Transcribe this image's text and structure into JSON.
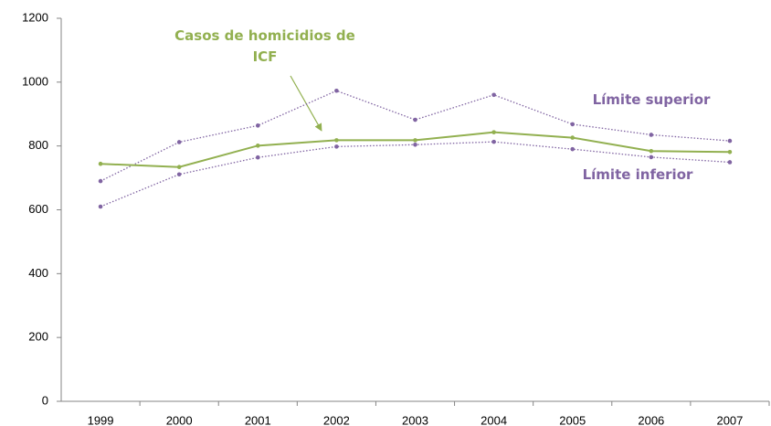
{
  "chart_data": {
    "type": "line",
    "categories": [
      "1999",
      "2000",
      "2001",
      "2002",
      "2003",
      "2004",
      "2005",
      "2006",
      "2007"
    ],
    "series": [
      {
        "name": "Límite superior",
        "color": "#8064a2",
        "dash": true,
        "values": [
          690,
          812,
          864,
          973,
          882,
          960,
          868,
          835,
          816
        ]
      },
      {
        "name": "Casos de homicidios de ICF",
        "color": "#92b050",
        "dash": false,
        "values": [
          744,
          734,
          801,
          818,
          818,
          843,
          826,
          784,
          781
        ]
      },
      {
        "name": "Límite inferior",
        "color": "#8064a2",
        "dash": true,
        "values": [
          610,
          711,
          764,
          798,
          804,
          813,
          790,
          765,
          749
        ]
      }
    ],
    "ylim": [
      0,
      1200
    ],
    "yticks": [
      0,
      200,
      400,
      600,
      800,
      1000,
      1200
    ],
    "grid": false
  }
}
